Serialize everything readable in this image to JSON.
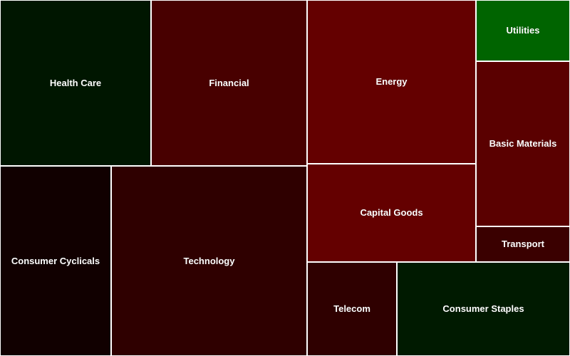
{
  "chart_data": {
    "type": "treemap",
    "title": "",
    "sectors": [
      {
        "name": "Health Care",
        "color": "#001600"
      },
      {
        "name": "Financial",
        "color": "#480000"
      },
      {
        "name": "Energy",
        "color": "#640000"
      },
      {
        "name": "Utilities",
        "color": "#006400"
      },
      {
        "name": "Basic Materials",
        "color": "#5a0000"
      },
      {
        "name": "Consumer Cyclicals",
        "color": "#110000"
      },
      {
        "name": "Technology",
        "color": "#2f0000"
      },
      {
        "name": "Capital Goods",
        "color": "#640000"
      },
      {
        "name": "Transport",
        "color": "#3a0000"
      },
      {
        "name": "Telecom",
        "color": "#2f0000"
      },
      {
        "name": "Consumer Staples",
        "color": "#001a00"
      }
    ]
  }
}
